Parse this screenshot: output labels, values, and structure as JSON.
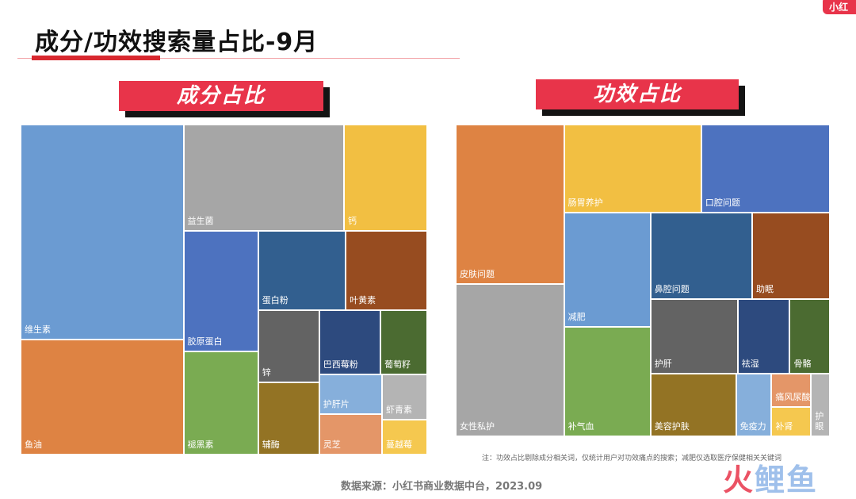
{
  "page": {
    "title": "成分/功效搜索量占比-9月",
    "brand_tab": "小红",
    "note": "注：功效占比剔除成分相关词，仅统计用户对功效痛点的搜索；减肥仅选取医疗保健相关关键词",
    "source": "数据来源：小红书商业数据中台，2023.09",
    "watermark": {
      "part1": "火",
      "part2": "鲤鱼"
    }
  },
  "colors": {
    "accent": "#e8344a",
    "rule": "#d8282f"
  },
  "chart_data": [
    {
      "type": "treemap",
      "title": "成分占比",
      "items": [
        {
          "label": "维生素",
          "value": 22.2,
          "color": "#6b9bd2"
        },
        {
          "label": "鱼油",
          "value": 11.9,
          "color": "#de8343"
        },
        {
          "label": "益生菌",
          "value": 10.8,
          "color": "#a6a6a6"
        },
        {
          "label": "钙",
          "value": 5.6,
          "color": "#f2bf42"
        },
        {
          "label": "胶原蛋白",
          "value": 5.7,
          "color": "#4d72bf"
        },
        {
          "label": "褪黑素",
          "value": 4.9,
          "color": "#7aab52"
        },
        {
          "label": "蛋白粉",
          "value": 4.4,
          "color": "#325f8f"
        },
        {
          "label": "叶黄素",
          "value": 4.1,
          "color": "#974c20"
        },
        {
          "label": "锌",
          "value": 2.8,
          "color": "#636363"
        },
        {
          "label": "辅酶",
          "value": 2.8,
          "color": "#937324"
        },
        {
          "label": "巴西莓粉",
          "value": 2.5,
          "color": "#2d4a7e"
        },
        {
          "label": "葡萄籽",
          "value": 1.9,
          "color": "#4b6b31"
        },
        {
          "label": "护肝片",
          "value": 1.6,
          "color": "#86afdb"
        },
        {
          "label": "灵芝",
          "value": 1.6,
          "color": "#e49668"
        },
        {
          "label": "虾青素",
          "value": 1.3,
          "color": "#b4b4b4"
        },
        {
          "label": "蔓越莓",
          "value": 1.0,
          "color": "#f5c84f"
        }
      ]
    },
    {
      "type": "treemap",
      "title": "功效占比",
      "items": [
        {
          "label": "皮肤问题",
          "value": 13.3,
          "color": "#de8343"
        },
        {
          "label": "女性私护",
          "value": 12.7,
          "color": "#a6a6a6"
        },
        {
          "label": "肠胃养护",
          "value": 9.3,
          "color": "#f2bf42"
        },
        {
          "label": "口腔问题",
          "value": 8.7,
          "color": "#4d72bf"
        },
        {
          "label": "减肥",
          "value": 7.6,
          "color": "#6b9bd2"
        },
        {
          "label": "补气血",
          "value": 7.3,
          "color": "#7aab52"
        },
        {
          "label": "鼻腔问题",
          "value": 6.8,
          "color": "#325f8f"
        },
        {
          "label": "助眠",
          "value": 5.2,
          "color": "#974c20"
        },
        {
          "label": "护肝",
          "value": 5.0,
          "color": "#636363"
        },
        {
          "label": "美容护肤",
          "value": 4.1,
          "color": "#937324"
        },
        {
          "label": "祛湿",
          "value": 3.0,
          "color": "#2d4a7e"
        },
        {
          "label": "骨骼",
          "value": 2.3,
          "color": "#4b6b31"
        },
        {
          "label": "免疫力",
          "value": 1.7,
          "color": "#86afdb"
        },
        {
          "label": "痛风尿酸",
          "value": 1.0,
          "color": "#e49668"
        },
        {
          "label": "护眼",
          "value": 0.9,
          "color": "#b4b4b4"
        },
        {
          "label": "补肾",
          "value": 0.9,
          "color": "#f5c84f"
        }
      ]
    }
  ]
}
